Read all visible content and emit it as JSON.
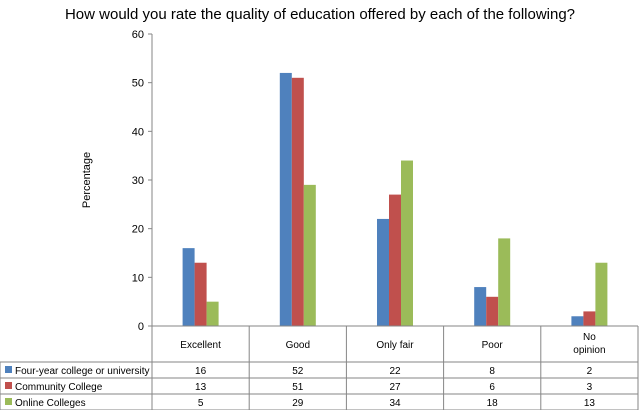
{
  "chart_data": {
    "type": "bar",
    "title": "How would you rate the quality of education offered by each of the following?",
    "ylabel": "Percentage",
    "xlabel": "",
    "ylim": [
      0,
      60
    ],
    "yticks": [
      0,
      10,
      20,
      30,
      40,
      50,
      60
    ],
    "grid": false,
    "legend": "data table below plot",
    "categories": [
      "Excellent",
      "Good",
      "Only fair",
      "Poor",
      "No opinion"
    ],
    "category_lines": [
      [
        "Excellent"
      ],
      [
        "Good"
      ],
      [
        "Only fair"
      ],
      [
        "Poor"
      ],
      [
        "No",
        "opinion"
      ]
    ],
    "series": [
      {
        "name": "Four-year college or university",
        "color": "#4f81bd",
        "values": [
          16,
          52,
          22,
          8,
          2
        ]
      },
      {
        "name": "Community College",
        "color": "#c0504d",
        "values": [
          13,
          51,
          27,
          6,
          3
        ]
      },
      {
        "name": "Online Colleges",
        "color": "#9bbb59",
        "values": [
          5,
          29,
          34,
          18,
          13
        ]
      }
    ]
  }
}
